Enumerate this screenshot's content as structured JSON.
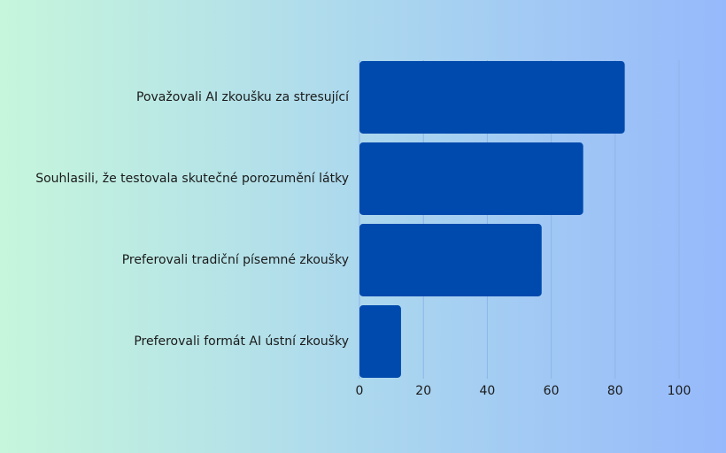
{
  "chart_data": {
    "type": "bar",
    "orientation": "horizontal",
    "categories": [
      "Považovali AI zkoušku za stresující",
      "Souhlasili, že testovala skutečné porozumění látky",
      "Preferovali tradiční písemné zkoušky",
      "Preferovali formát AI ústní zkoušky"
    ],
    "values": [
      83,
      70,
      57,
      13
    ],
    "color": "#004aad",
    "xlim": [
      0,
      100
    ],
    "xticks": [
      0,
      20,
      40,
      60,
      80,
      100
    ],
    "grid": true
  }
}
